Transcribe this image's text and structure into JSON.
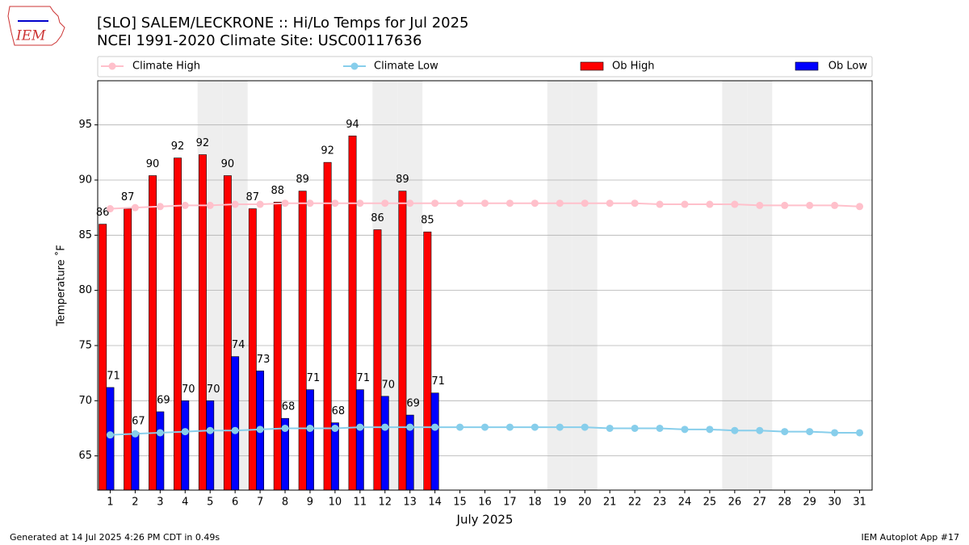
{
  "logo_text": "IEM",
  "footer_left": "Generated at 14 Jul 2025 4:26 PM CDT in 0.49s",
  "footer_right": "IEM Autoplot App #17",
  "chart_data": {
    "type": "bar",
    "title": "[SLO] SALEM/LECKRONE :: Hi/Lo Temps for Jul 2025",
    "subtitle": "NCEI 1991-2020 Climate Site: USC00117636",
    "x_label": "July 2025",
    "y_label": "Temperature ˚F",
    "categories": [
      "1",
      "2",
      "3",
      "4",
      "5",
      "6",
      "7",
      "8",
      "9",
      "10",
      "11",
      "12",
      "13",
      "14",
      "15",
      "16",
      "17",
      "18",
      "19",
      "20",
      "21",
      "22",
      "23",
      "24",
      "25",
      "26",
      "27",
      "28",
      "29",
      "30",
      "31"
    ],
    "xlim": [
      0.5,
      31.5
    ],
    "ylim": [
      61.9,
      99
    ],
    "yticks": [
      65,
      70,
      75,
      80,
      85,
      90,
      95
    ],
    "grid": true,
    "shaded_days": [
      5,
      6,
      12,
      13,
      19,
      20,
      26,
      27
    ],
    "shade_color": "#eeeeee",
    "series": [
      {
        "name": "Climate High",
        "type": "line",
        "color": "#ffc0cb",
        "values": [
          87.4,
          87.5,
          87.6,
          87.7,
          87.7,
          87.8,
          87.8,
          87.9,
          87.9,
          87.9,
          87.9,
          87.9,
          87.9,
          87.9,
          87.9,
          87.9,
          87.9,
          87.9,
          87.9,
          87.9,
          87.9,
          87.9,
          87.8,
          87.8,
          87.8,
          87.8,
          87.7,
          87.7,
          87.7,
          87.7,
          87.6
        ]
      },
      {
        "name": "Climate Low",
        "type": "line",
        "color": "#87ceeb",
        "values": [
          66.9,
          67.0,
          67.1,
          67.2,
          67.3,
          67.3,
          67.4,
          67.5,
          67.5,
          67.5,
          67.6,
          67.6,
          67.6,
          67.6,
          67.6,
          67.6,
          67.6,
          67.6,
          67.6,
          67.6,
          67.5,
          67.5,
          67.5,
          67.4,
          67.4,
          67.3,
          67.3,
          67.2,
          67.2,
          67.1,
          67.1
        ]
      },
      {
        "name": "Ob High",
        "type": "bar",
        "color": "#ff0000",
        "values": [
          86.0,
          87.4,
          90.4,
          92.0,
          92.3,
          90.4,
          87.4,
          88.0,
          89.0,
          91.6,
          94.0,
          85.5,
          89.0,
          85.3,
          null,
          null,
          null,
          null,
          null,
          null,
          null,
          null,
          null,
          null,
          null,
          null,
          null,
          null,
          null,
          null,
          null
        ],
        "value_labels": [
          "86",
          "87",
          "90",
          "92",
          "92",
          "90",
          "87",
          "88",
          "89",
          "92",
          "94",
          "86",
          "89",
          "85",
          null,
          null,
          null,
          null,
          null,
          null,
          null,
          null,
          null,
          null,
          null,
          null,
          null,
          null,
          null,
          null,
          null
        ]
      },
      {
        "name": "Ob Low",
        "type": "bar",
        "color": "#0000ff",
        "values": [
          71.2,
          67.1,
          69.0,
          70.0,
          70.0,
          74.0,
          72.7,
          68.4,
          71.0,
          68.0,
          71.0,
          70.4,
          68.7,
          70.7,
          null,
          null,
          null,
          null,
          null,
          null,
          null,
          null,
          null,
          null,
          null,
          null,
          null,
          null,
          null,
          null,
          null
        ],
        "value_labels": [
          "71",
          "67",
          "69",
          "70",
          "70",
          "74",
          "73",
          "68",
          "71",
          "68",
          "71",
          "70",
          "69",
          "71",
          null,
          null,
          null,
          null,
          null,
          null,
          null,
          null,
          null,
          null,
          null,
          null,
          null,
          null,
          null,
          null,
          null
        ]
      }
    ]
  }
}
